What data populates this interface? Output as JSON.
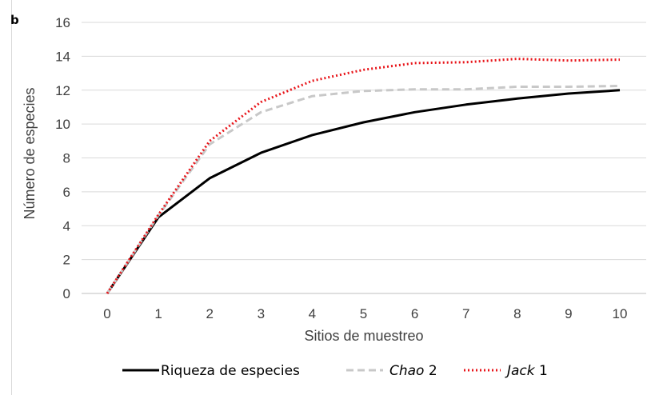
{
  "panel_label": "b",
  "chart_data": {
    "type": "line",
    "xlabel": "Sitios de muestreo",
    "ylabel": "Número de especies",
    "x": [
      0,
      1,
      2,
      3,
      4,
      5,
      6,
      7,
      8,
      9,
      10
    ],
    "xlim": [
      0,
      10
    ],
    "ylim": [
      0,
      16
    ],
    "yticks": [
      0,
      2,
      4,
      6,
      8,
      10,
      12,
      14,
      16
    ],
    "grid": "horizontal",
    "legend_position": "bottom",
    "series": [
      {
        "name": "Riqueza de especies",
        "legend_parts": [
          {
            "text": "Riqueza de especies",
            "italic": false
          }
        ],
        "color": "#000000",
        "style": "solid",
        "values": [
          0,
          4.5,
          6.8,
          8.3,
          9.35,
          10.1,
          10.7,
          11.15,
          11.5,
          11.8,
          12.0
        ]
      },
      {
        "name": "Chao 2",
        "legend_parts": [
          {
            "text": "Chao",
            "italic": true
          },
          {
            "text": " 2",
            "italic": false
          }
        ],
        "color": "#c8c8c8",
        "style": "dashed",
        "values": [
          0,
          4.6,
          8.8,
          10.7,
          11.65,
          11.95,
          12.05,
          12.05,
          12.2,
          12.2,
          12.25
        ]
      },
      {
        "name": "Jack 1",
        "legend_parts": [
          {
            "text": "Jack",
            "italic": true
          },
          {
            "text": " 1",
            "italic": false
          }
        ],
        "color": "#e8161b",
        "style": "dotted",
        "values": [
          0,
          4.65,
          9.0,
          11.3,
          12.55,
          13.2,
          13.6,
          13.65,
          13.85,
          13.75,
          13.8
        ]
      }
    ]
  }
}
